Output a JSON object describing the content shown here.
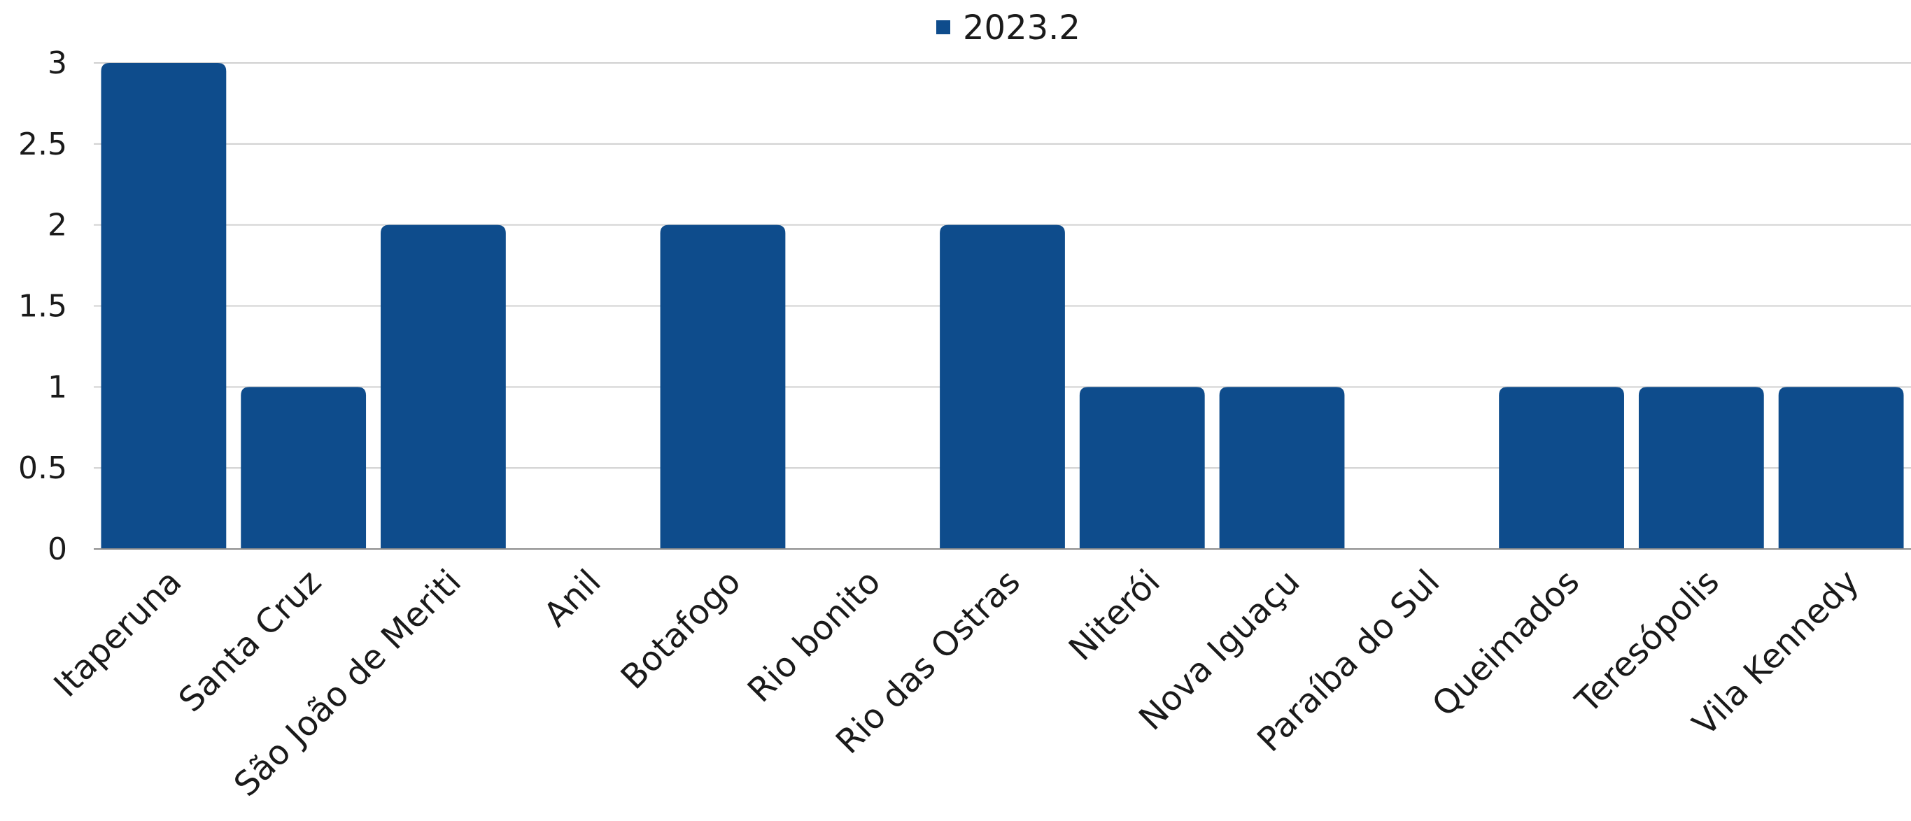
{
  "chart_data": {
    "type": "bar",
    "categories": [
      "Itaperuna",
      "Santa Cruz",
      "São João de Meriti",
      "Anil",
      "Botafogo",
      "Rio bonito",
      "Rio das Ostras",
      "Niterói",
      "Nova Iguaçu",
      "Paraíba do Sul",
      "Queimados",
      "Teresópolis",
      "Vila Kennedy"
    ],
    "series": [
      {
        "name": "2023.2",
        "color": "#0e4c8c",
        "values": [
          3,
          1,
          2,
          0,
          2,
          0,
          2,
          1,
          1,
          0,
          1,
          1,
          1
        ]
      }
    ],
    "ylim": [
      0,
      3
    ],
    "yticks": [
      "0",
      "0.5",
      "1",
      "1.5",
      "2",
      "2.5",
      "3"
    ],
    "grid": true,
    "legend_position": "top-center"
  }
}
